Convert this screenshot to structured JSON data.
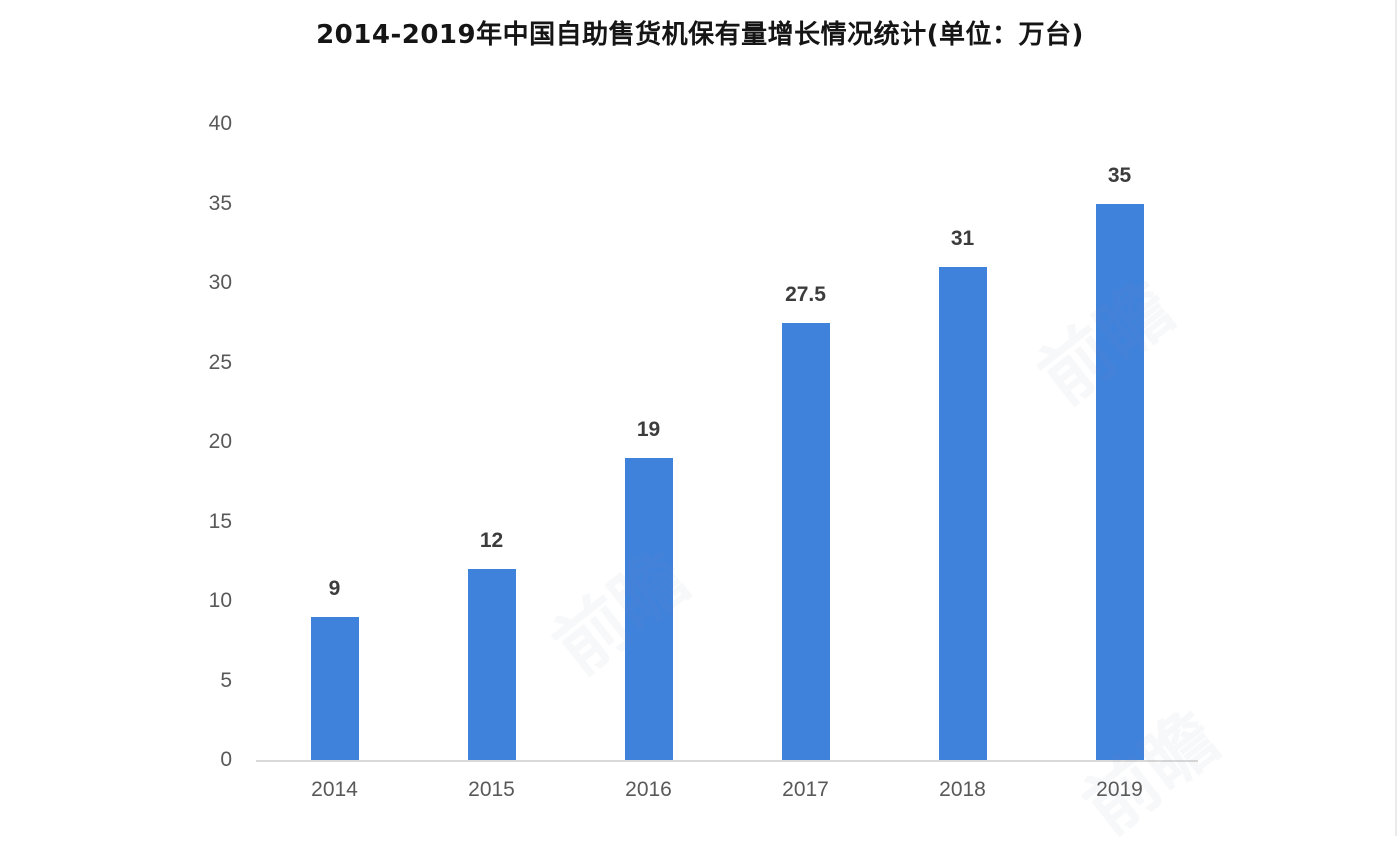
{
  "chart_data": {
    "type": "bar",
    "title": "2014-2019年中国自助售货机保有量增长情况统计(单位：万台)",
    "categories": [
      "2014",
      "2015",
      "2016",
      "2017",
      "2018",
      "2019"
    ],
    "values": [
      9,
      12,
      19,
      27.5,
      31,
      35
    ],
    "data_labels": [
      "9",
      "12",
      "19",
      "27.5",
      "31",
      "35"
    ],
    "series_name": "自助售货机保有量",
    "unit": "万台",
    "ylim": [
      0,
      40
    ],
    "yticks": [
      0,
      5,
      10,
      15,
      20,
      25,
      30,
      35,
      40
    ],
    "xlabel": "",
    "ylabel": "",
    "grid": false,
    "legend": false,
    "legend_position": "none",
    "bar_color": "#3f82dc",
    "axis_line_color": "#d9d9d9",
    "tick_label_color": "#595959",
    "data_label_color": "#3c3c3c",
    "title_color": "#151515",
    "background_color": "#ffffff"
  },
  "watermark": {
    "text": "前瞻"
  }
}
